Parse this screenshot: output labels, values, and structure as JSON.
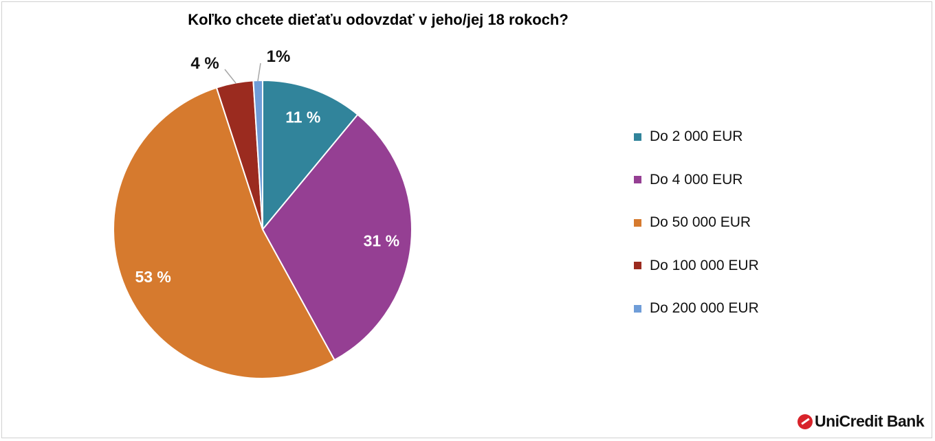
{
  "chart_data": {
    "type": "pie",
    "title": "Koľko chcete dieťaťu odovzdať v jeho/jej 18 rokoch?",
    "categories": [
      "Do 2 000 EUR",
      "Do 4 000 EUR",
      "Do 50 000 EUR",
      "Do 100 000 EUR",
      "Do 200 000 EUR"
    ],
    "values": [
      11,
      31,
      53,
      4,
      1
    ],
    "data_labels": [
      "11 %",
      "31 %",
      "53 %",
      "4 %",
      "1%"
    ],
    "colors": [
      "#31849b",
      "#953f93",
      "#d67a2e",
      "#9b2b1f",
      "#6f9dd8"
    ],
    "start_angle": "12 o'clock, clockwise",
    "legend_position": "right"
  },
  "logo": {
    "text": "UniCredit Bank"
  }
}
